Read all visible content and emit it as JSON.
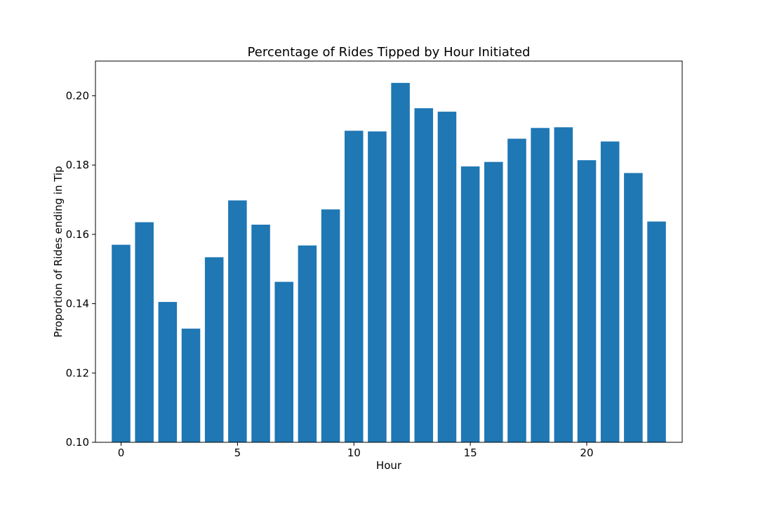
{
  "chart_data": {
    "type": "bar",
    "title": "Percentage of Rides Tipped by Hour Initiated",
    "xlabel": "Hour",
    "ylabel": "Proportion of Rides ending in Tip",
    "categories": [
      0,
      1,
      2,
      3,
      4,
      5,
      6,
      7,
      8,
      9,
      10,
      11,
      12,
      13,
      14,
      15,
      16,
      17,
      18,
      19,
      20,
      21,
      22,
      23
    ],
    "values": [
      0.157,
      0.1635,
      0.1405,
      0.1328,
      0.1534,
      0.1698,
      0.1628,
      0.1463,
      0.1568,
      0.1672,
      0.1899,
      0.1897,
      0.2037,
      0.1964,
      0.1954,
      0.1796,
      0.1809,
      0.1876,
      0.1907,
      0.1909,
      0.1814,
      0.1868,
      0.1777,
      0.1637
    ],
    "xlim": [
      -1.1,
      24.1
    ],
    "ylim": [
      0.1,
      0.21
    ],
    "xticks": [
      0,
      5,
      10,
      15,
      20
    ],
    "xtick_labels": [
      "0",
      "5",
      "10",
      "15",
      "20"
    ],
    "yticks": [
      0.1,
      0.12,
      0.14,
      0.16,
      0.18,
      0.2
    ],
    "ytick_labels": [
      "0.10",
      "0.12",
      "0.14",
      "0.16",
      "0.18",
      "0.20"
    ],
    "bar_color": "#1f77b4",
    "grid": false,
    "legend": "none"
  }
}
